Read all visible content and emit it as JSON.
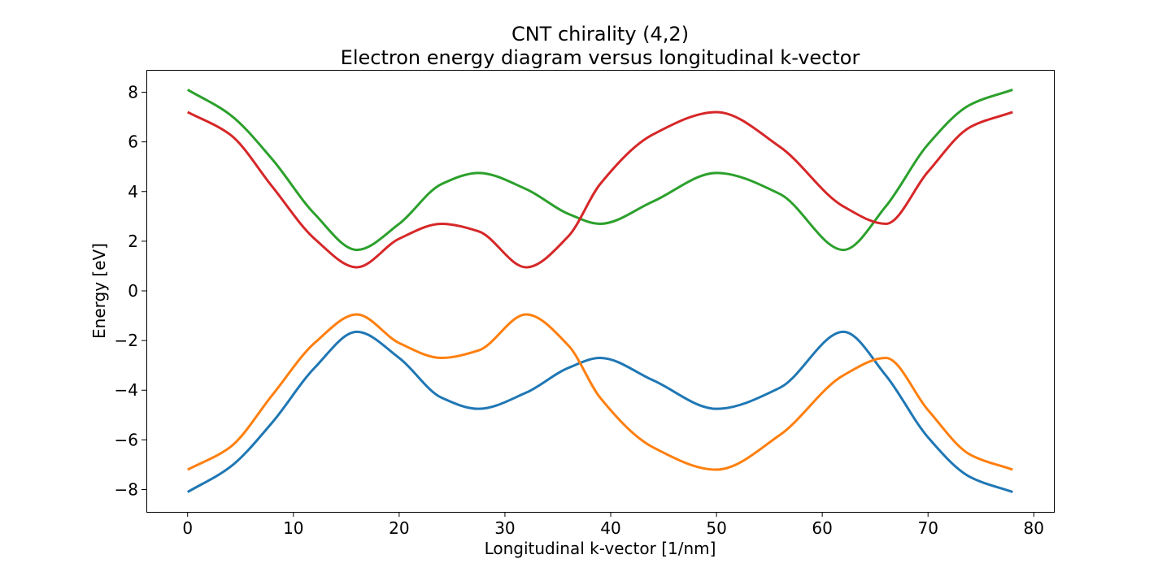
{
  "chart_data": {
    "type": "line",
    "title": "CNT chirality (4,2)",
    "subtitle": "Electron energy diagram versus longitudinal k-vector",
    "xlabel": "Longitudinal k-vector [1/nm]",
    "ylabel": "Energy [eV]",
    "xlim": [
      -3.9,
      81.9
    ],
    "ylim": [
      -8.9,
      8.9
    ],
    "xticks": [
      0,
      10,
      20,
      30,
      40,
      50,
      60,
      70,
      80
    ],
    "yticks": [
      -8,
      -6,
      -4,
      -2,
      0,
      2,
      4,
      6,
      8
    ],
    "xtick_labels": [
      "0",
      "10",
      "20",
      "30",
      "40",
      "50",
      "60",
      "70",
      "80"
    ],
    "ytick_labels": [
      "−8",
      "−6",
      "−4",
      "−2",
      "0",
      "2",
      "4",
      "6",
      "8"
    ],
    "grid": false,
    "legend": null,
    "x": [
      0,
      4,
      8,
      12,
      16,
      20,
      24,
      27.5,
      32,
      36,
      39,
      44,
      50,
      56,
      62,
      66,
      70,
      74,
      78
    ],
    "series": [
      {
        "color": "#1f77b4",
        "values": [
          -8.1,
          -7.1,
          -5.3,
          -3.1,
          -1.65,
          -2.7,
          -4.3,
          -4.75,
          -4.1,
          -3.1,
          -2.7,
          -3.6,
          -4.75,
          -3.9,
          -1.65,
          -3.4,
          -5.9,
          -7.5,
          -8.1
        ]
      },
      {
        "color": "#ff7f0e",
        "values": [
          -7.2,
          -6.3,
          -4.2,
          -2.1,
          -0.95,
          -2.1,
          -2.7,
          -2.4,
          -0.95,
          -2.2,
          -4.3,
          -6.3,
          -7.2,
          -5.8,
          -3.4,
          -2.7,
          -4.8,
          -6.6,
          -7.2
        ]
      },
      {
        "color": "#2ca02c",
        "values": [
          8.1,
          7.1,
          5.3,
          3.1,
          1.65,
          2.7,
          4.3,
          4.75,
          4.1,
          3.1,
          2.7,
          3.6,
          4.75,
          3.9,
          1.65,
          3.4,
          5.9,
          7.5,
          8.1
        ]
      },
      {
        "color": "#d62728",
        "values": [
          7.2,
          6.3,
          4.2,
          2.1,
          0.95,
          2.1,
          2.7,
          2.4,
          0.95,
          2.2,
          4.3,
          6.3,
          7.2,
          5.8,
          3.4,
          2.7,
          4.8,
          6.6,
          7.2
        ]
      }
    ]
  }
}
